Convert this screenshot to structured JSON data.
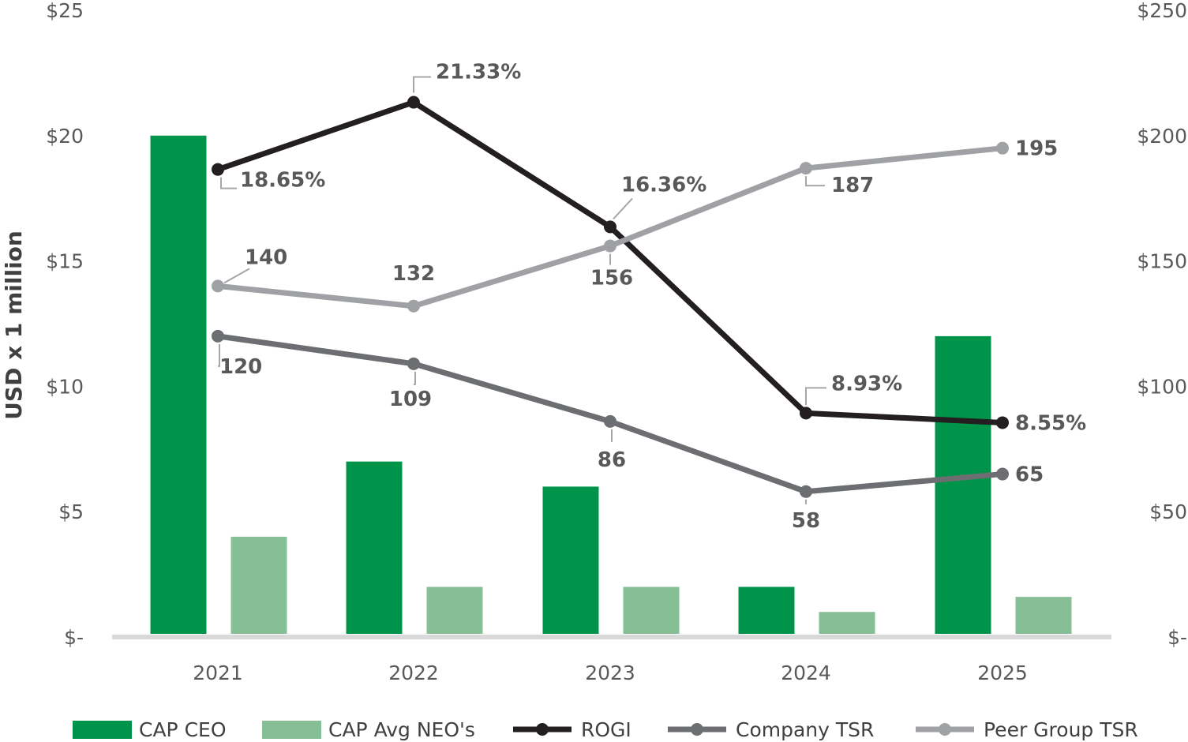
{
  "chart_data": {
    "type": "bar",
    "categories": [
      "2021",
      "2022",
      "2023",
      "2024",
      "2025"
    ],
    "ylabel": "USD x 1 million",
    "ylim": [
      0,
      25
    ],
    "y2lim": [
      0,
      250
    ],
    "left_ticks": [
      "$-",
      "$5",
      "$10",
      "$15",
      "$20",
      "$25"
    ],
    "right_ticks": [
      "$-",
      "$50",
      "$100",
      "$150",
      "$200",
      "$250"
    ],
    "series": [
      {
        "name": "CAP CEO",
        "kind": "bar",
        "axis": "left",
        "color": "#00944a",
        "values": [
          20.0,
          7.0,
          6.0,
          2.0,
          12.0
        ]
      },
      {
        "name": "CAP Avg NEO's",
        "kind": "bar",
        "axis": "left",
        "color": "#86bf96",
        "values": [
          4.0,
          2.0,
          2.0,
          1.0,
          1.6
        ]
      },
      {
        "name": "ROGI",
        "kind": "line",
        "axis": "right",
        "color": "#231f20",
        "values": [
          18.65,
          21.33,
          16.36,
          8.93,
          8.55
        ],
        "labels": [
          "18.65%",
          "21.33%",
          "16.36%",
          "8.93%",
          "8.55%"
        ]
      },
      {
        "name": "Company TSR",
        "kind": "line",
        "axis": "right",
        "color": "#6d6e71",
        "values": [
          120,
          109,
          86,
          58,
          65
        ],
        "labels": [
          "120",
          "109",
          "86",
          "58",
          "65"
        ]
      },
      {
        "name": "Peer Group TSR",
        "kind": "line",
        "axis": "right",
        "color": "#a0a1a4",
        "values": [
          140,
          132,
          156,
          187,
          195
        ],
        "labels": [
          "140",
          "132",
          "156",
          "187",
          "195"
        ]
      }
    ],
    "legend": [
      "CAP CEO",
      "CAP Avg NEO's",
      "ROGI",
      "Company TSR",
      "Peer Group TSR"
    ],
    "legend_position": "bottom"
  }
}
